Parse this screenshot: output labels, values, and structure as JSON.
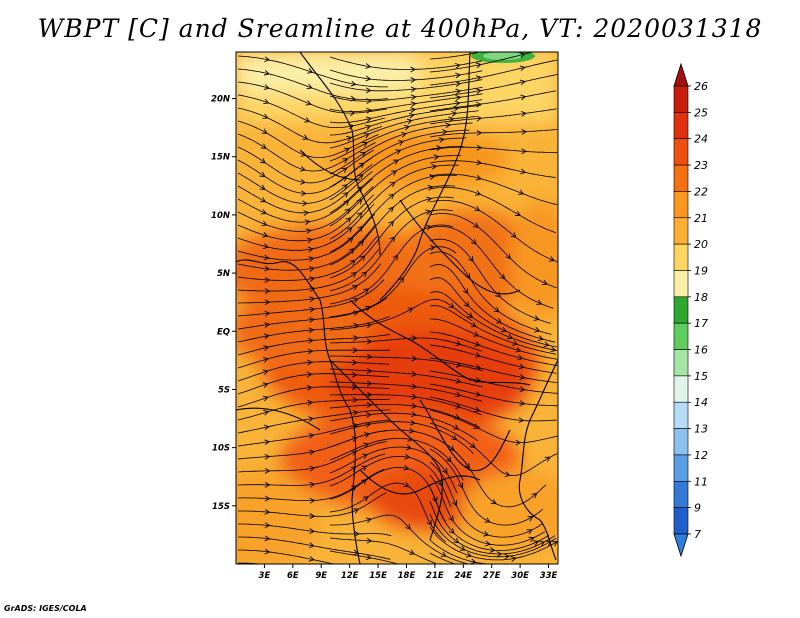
{
  "title": "WBPT [C] and Sreamline at 400hPa, VT: 2020031318",
  "credit": "GrADS: IGES/COLA",
  "map": {
    "lat_labels": [
      "20N",
      "15N",
      "10N",
      "5N",
      "EQ",
      "5S",
      "10S",
      "15S"
    ],
    "lat_values": [
      20,
      15,
      10,
      5,
      0,
      -5,
      -10,
      -15
    ],
    "lon_labels": [
      "3E",
      "6E",
      "9E",
      "12E",
      "15E",
      "18E",
      "21E",
      "24E",
      "27E",
      "30E",
      "33E"
    ],
    "lon_values": [
      3,
      6,
      9,
      12,
      15,
      18,
      21,
      24,
      27,
      30,
      33
    ],
    "lon_range": [
      0,
      34
    ],
    "lat_range": [
      -20,
      24
    ]
  },
  "colorbar": {
    "labels": [
      "26",
      "25",
      "24",
      "23",
      "22",
      "21",
      "20",
      "19",
      "18",
      "17",
      "16",
      "15",
      "14",
      "13",
      "12",
      "11",
      "9",
      "7"
    ],
    "colors": [
      "#a50f0f",
      "#c81e0e",
      "#e0300f",
      "#f0500f",
      "#f57010",
      "#f89620",
      "#fbb035",
      "#fcd565",
      "#fbeea6",
      "#2ea82e",
      "#5fcc5f",
      "#a5e6a5",
      "#e0f4ec",
      "#b5dcf5",
      "#8cc0ee",
      "#5a9ee6",
      "#3478d8",
      "#1f5ecc",
      "#2e7fe0"
    ]
  }
}
